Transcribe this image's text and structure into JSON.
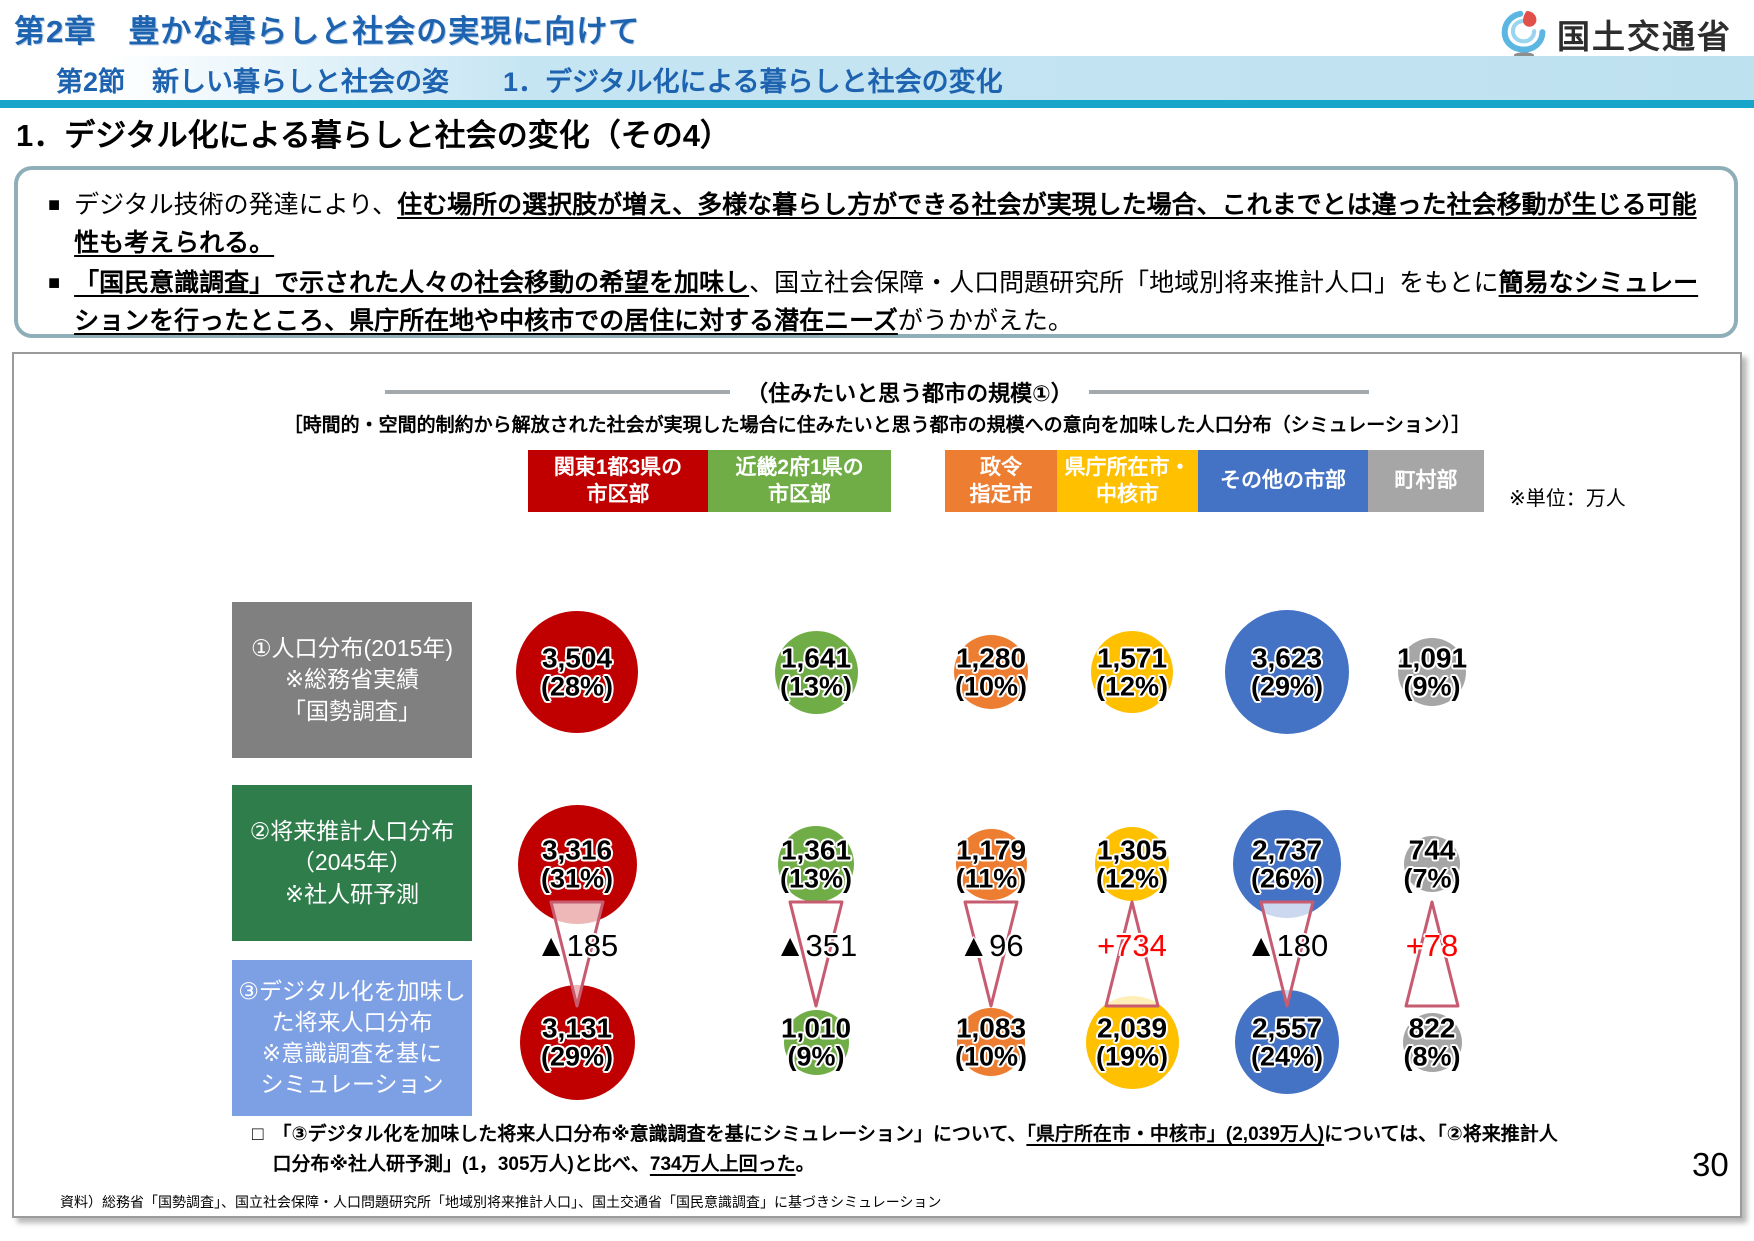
{
  "header": {
    "chapter_title": "第2章　豊かな暮らしと社会の実現に向けて",
    "section_bar": "第2節　新しい暮らしと社会の姿　　1．デジタル化による暮らしと社会の変化",
    "logo_text": "国土交通省"
  },
  "page": {
    "title": "1．デジタル化による暮らしと社会の変化（その4）",
    "number": "30"
  },
  "summary_box": {
    "marker": "■",
    "bullets": [
      {
        "segments": [
          {
            "text": "デジタル技術の発達により、",
            "em": false
          },
          {
            "text": "住む場所の選択肢が増え、多様な暮らし方ができる社会が実現した場合、これまでとは違った社会移動が生じる可能性も考えられる。",
            "em": true
          }
        ]
      },
      {
        "segments": [
          {
            "text": "「国民意識調査」で示された人々の社会移動の希望を加味し",
            "em": true
          },
          {
            "text": "、国立社会保障・人口問題研究所「地域別将来推計人口」をもとに",
            "em": false
          },
          {
            "text": "簡易なシミュレーションを行ったところ、県庁所在地や中核市での居住に対する潜在ニーズ",
            "em": true
          },
          {
            "text": "がうかがえた。",
            "em": false
          }
        ]
      }
    ]
  },
  "chart": {
    "title": "（住みたいと思う都市の規模①）",
    "subtitle": "［時間的・空間的制約から解放された社会が実現した場合に住みたいと思う都市の規模への意向を加味した人口分布（シミュレーション）］",
    "unit_note": "※単位：万人",
    "footnote_marker": "□",
    "footnote_segments": [
      {
        "text": "「③デジタル化を加味した将来人口分布※意識調査を基にシミュレーション」について、",
        "em": false
      },
      {
        "text": "「県庁所在市・中核市」(2,039万人)",
        "em": true
      },
      {
        "text": "については、「②将来推計人口分布※社人研予測」(1，305万人)と比べ、",
        "em": false
      },
      {
        "text": "734万人上回った",
        "em": true
      },
      {
        "text": "。",
        "em": false
      }
    ],
    "source": "資料）総務省「国勢調査」、国立社会保障・人口問題研究所「地域別将来推計人口」、国土交通省「国民意識調査」に基づきシミュレーション"
  },
  "chart_data": {
    "type": "bubble",
    "unit": "万人",
    "categories": [
      "関東1都3県の市区部",
      "近畿2府1県の市区部",
      "政令指定市",
      "県庁所在市・中核市",
      "その他の市部",
      "町村部"
    ],
    "category_colors": [
      "#C00000",
      "#70AD47",
      "#ED7D31",
      "#FFC000",
      "#4472C4",
      "#A6A6A6"
    ],
    "column_header_lines": [
      [
        "関東1都3県の",
        "市区部"
      ],
      [
        "近畿2府1県の",
        "市区部"
      ],
      [
        "政令",
        "指定市"
      ],
      [
        "県庁所在市・",
        "中核市"
      ],
      [
        "その他の市部"
      ],
      [
        "町村部"
      ]
    ],
    "rows": [
      {
        "label_lines": [
          "①人口分布(2015年)",
          "※総務省実績",
          "「国勢調査」"
        ],
        "label_color": "#808080",
        "values": [
          3504,
          1641,
          1280,
          1571,
          3623,
          1091
        ],
        "display": [
          "3,504",
          "1,641",
          "1,280",
          "1,571",
          "3,623",
          "1,091"
        ],
        "pct": [
          "(28%)",
          "(13%)",
          "(10%)",
          "(12%)",
          "(29%)",
          "(9%)"
        ]
      },
      {
        "label_lines": [
          "②将来推計人口分布",
          "（2045年）",
          "※社人研予測"
        ],
        "label_color": "#2E7D4B",
        "values": [
          3316,
          1361,
          1179,
          1305,
          2737,
          744
        ],
        "display": [
          "3,316",
          "1,361",
          "1,179",
          "1,305",
          "2,737",
          "744"
        ],
        "pct": [
          "(31%)",
          "(13%)",
          "(11%)",
          "(12%)",
          "(26%)",
          "(7%)"
        ]
      },
      {
        "label_lines": [
          "③デジタル化を加味し",
          "た将来人口分布",
          "※意識調査を基に",
          "シミュレーション"
        ],
        "label_color": "#7DA0E4",
        "values": [
          3131,
          1010,
          1083,
          2039,
          2557,
          822
        ],
        "display": [
          "3,131",
          "1,010",
          "1,083",
          "2,039",
          "2,557",
          "822"
        ],
        "pct": [
          "(29%)",
          "(9%)",
          "(10%)",
          "(19%)",
          "(24%)",
          "(8%)"
        ]
      }
    ],
    "deltas": [
      {
        "label": "▲185",
        "up": false
      },
      {
        "label": "▲351",
        "up": false
      },
      {
        "label": "▲96",
        "up": false
      },
      {
        "label": "+734",
        "up": true
      },
      {
        "label": "▲180",
        "up": false
      },
      {
        "label": "+78",
        "up": true
      }
    ],
    "delta_colors": {
      "decrease": "#000000",
      "increase": "#FF0000"
    },
    "delta_triangle_outline": "#C75B70"
  }
}
